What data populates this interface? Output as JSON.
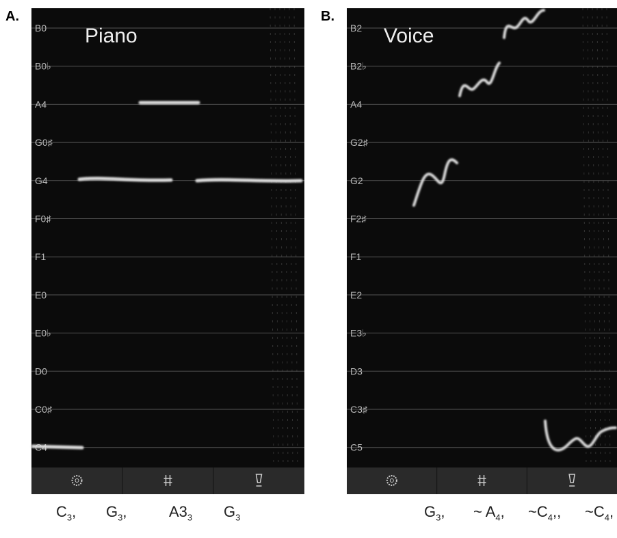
{
  "panels": [
    {
      "label": "A.",
      "title": "Piano",
      "notes": [
        "B0",
        "B0♭",
        "A4",
        "G0♯",
        "G4",
        "F0♯",
        "F1",
        "E0",
        "E0♭",
        "D0",
        "C0♯",
        "C4"
      ],
      "caption": [
        {
          "text": "C",
          "sub": "3",
          "after": ","
        },
        {
          "text": "G",
          "sub": "3",
          "after": ","
        },
        {
          "text": "A3",
          "sub": "3"
        },
        {
          "text": "G",
          "sub": "3"
        }
      ]
    },
    {
      "label": "B.",
      "title": "Voice",
      "notes": [
        "B2",
        "B2♭",
        "A4",
        "G2♯",
        "G2",
        "F2♯",
        "F1",
        "E2",
        "E3♭",
        "D3",
        "C3♯",
        "C5"
      ],
      "caption": [
        {
          "text": "G",
          "sub": "3",
          "after": ","
        },
        {
          "text": "~ A",
          "sub": "4",
          "after": ","
        },
        {
          "text": "~C",
          "sub": "4",
          "after": ",,"
        },
        {
          "text": "~C",
          "sub": "4",
          "after": ","
        }
      ]
    }
  ]
}
